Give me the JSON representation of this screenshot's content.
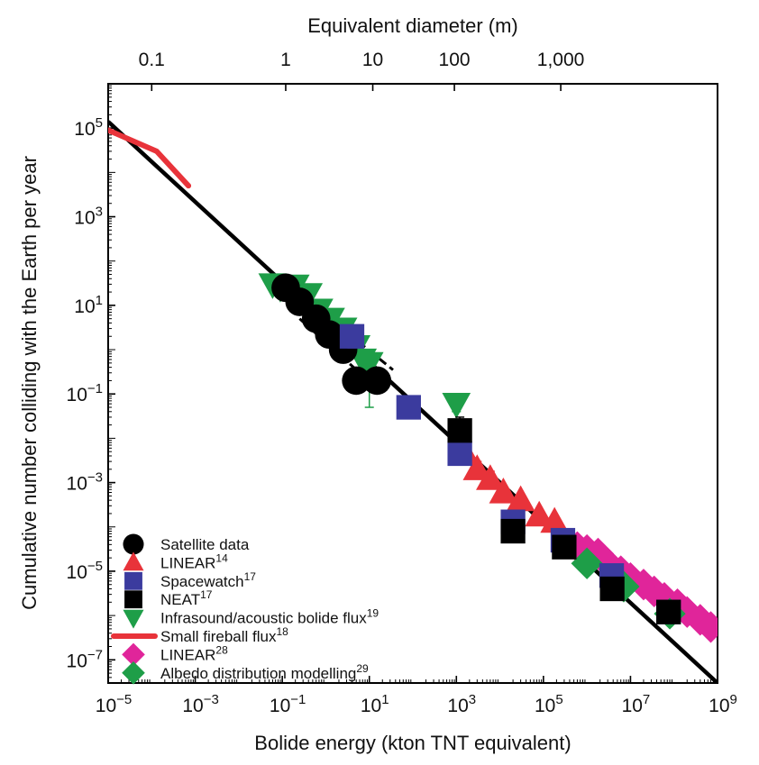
{
  "chart_data": {
    "type": "scatter",
    "xscale": "log",
    "yscale": "log",
    "xlabel": "Bolide energy (kton TNT equivalent)",
    "ylabel": "Cumulative number colliding with the Earth per year",
    "x2label": "Equivalent diameter (m)",
    "xlim": [
      1e-05,
      1000000000.0
    ],
    "ylim": [
      3e-08,
      1000000.0
    ],
    "x_ticks": [
      {
        "value": 1e-05,
        "base": "10",
        "exp": "−5"
      },
      {
        "value": 0.001,
        "base": "10",
        "exp": "−3"
      },
      {
        "value": 0.1,
        "base": "10",
        "exp": "−1"
      },
      {
        "value": 10.0,
        "base": "10",
        "exp": "1"
      },
      {
        "value": 1000.0,
        "base": "10",
        "exp": "3"
      },
      {
        "value": 100000.0,
        "base": "10",
        "exp": "5"
      },
      {
        "value": 10000000.0,
        "base": "10",
        "exp": "7"
      },
      {
        "value": 1000000000.0,
        "base": "10",
        "exp": "9"
      }
    ],
    "y_ticks": [
      {
        "value": 100000.0,
        "base": "10",
        "exp": "5"
      },
      {
        "value": 1000.0,
        "base": "10",
        "exp": "3"
      },
      {
        "value": 10.0,
        "base": "10",
        "exp": "1"
      },
      {
        "value": 0.1,
        "base": "10",
        "exp": "−1"
      },
      {
        "value": 0.001,
        "base": "10",
        "exp": "−3"
      },
      {
        "value": 1e-05,
        "base": "10",
        "exp": "−5"
      },
      {
        "value": 1e-07,
        "base": "10",
        "exp": "−7"
      }
    ],
    "top_ticks": [
      {
        "label": "0.1",
        "energy": 0.0001
      },
      {
        "label": "1",
        "energy": 0.12
      },
      {
        "label": "10",
        "energy": 12
      },
      {
        "label": "100",
        "energy": 900
      },
      {
        "label": "1,000",
        "energy": 250000
      }
    ],
    "fit_lines": [
      {
        "name": "Power-law fit",
        "points": [
          [
            1e-05,
            140000.0
          ],
          [
            1000000000.0,
            3e-08
          ]
        ],
        "dash": "none"
      },
      {
        "name": "Satellite fit upper bound",
        "points": [
          [
            0.6,
            9
          ],
          [
            35,
            0.35
          ]
        ],
        "dash": "10,5"
      },
      {
        "name": "Satellite fit lower bound",
        "points": [
          [
            0.25,
            5
          ],
          [
            6,
            0.3
          ]
        ],
        "dash": "10,5"
      }
    ],
    "series": [
      {
        "name": "Satellite data",
        "sup": "",
        "marker": "circle",
        "color": "#000000",
        "points": [
          [
            0.12,
            25
          ],
          [
            0.25,
            12
          ],
          [
            0.6,
            5
          ],
          [
            1.2,
            2.2
          ],
          [
            2.5,
            1
          ],
          [
            5,
            0.2
          ],
          [
            15,
            0.2
          ]
        ]
      },
      {
        "name": "LINEAR",
        "sup": "14",
        "marker": "triangle-up",
        "color": "#e8333a",
        "points": [
          [
            1600,
            0.0045
          ],
          [
            3000,
            0.002
          ],
          [
            6000,
            0.0012
          ],
          [
            12000,
            0.0006
          ],
          [
            30000,
            0.0004
          ],
          [
            80000,
            0.00018
          ],
          [
            180000,
            0.00013
          ]
        ],
        "errors": [
          [
            1600,
            0.003,
            0.009
          ],
          [
            3000,
            0.0012,
            0.003
          ],
          [
            6000,
            0.0008,
            0.0018
          ]
        ]
      },
      {
        "name": "Spacewatch",
        "sup": "17",
        "marker": "square",
        "color": "#3b3b9e",
        "points": [
          [
            4,
            2
          ],
          [
            80,
            0.05
          ],
          [
            1200,
            0.0045
          ],
          [
            20000,
            0.00013
          ],
          [
            280000,
            5e-05
          ],
          [
            3700000,
            8e-06
          ],
          [
            75000000,
            1.2e-06
          ]
        ],
        "errors": [
          [
            4,
            1.1,
            3.2
          ],
          [
            80,
            0.03,
            0.08
          ]
        ]
      },
      {
        "name": "NEAT",
        "sup": "17",
        "marker": "square",
        "color": "#000000",
        "points": [
          [
            1200,
            0.015
          ],
          [
            20000,
            8e-05
          ],
          [
            300000,
            3.5e-05
          ],
          [
            3800000,
            4e-06
          ],
          [
            75000000,
            1.2e-06
          ]
        ],
        "errors": [
          [
            1200,
            0.01,
            0.03
          ]
        ]
      },
      {
        "name": "Infrasound/acoustic bolide flux",
        "sup": "19",
        "marker": "triangle-down",
        "color": "#1e9e48",
        "points": [
          [
            0.06,
            30
          ],
          [
            0.09,
            25
          ],
          [
            0.2,
            28
          ],
          [
            0.4,
            18
          ],
          [
            0.7,
            8
          ],
          [
            1.3,
            5
          ],
          [
            2.5,
            3
          ],
          [
            3.5,
            2
          ],
          [
            5,
            1.2
          ],
          [
            7,
            0.6
          ],
          [
            10,
            0.5
          ],
          [
            1000,
            0.06
          ]
        ],
        "errors": [
          [
            10,
            0.05,
            0.45
          ],
          [
            1000,
            0.04,
            0.1
          ]
        ]
      },
      {
        "name": "Small fireball flux",
        "sup": "18",
        "marker": "line",
        "color": "#e8333a",
        "points": [
          [
            1e-05,
            90000.0
          ],
          [
            0.00013,
            30000.0
          ],
          [
            0.0007,
            5000
          ]
        ]
      },
      {
        "name": "LINEAR",
        "sup": "28",
        "marker": "diamond",
        "color": "#e0259a",
        "points": [
          [
            600000,
            3.5e-05
          ],
          [
            1000000,
            3e-05
          ],
          [
            1800000,
            2.5e-05
          ],
          [
            3000000,
            1.5e-05
          ],
          [
            6000000,
            1e-05
          ],
          [
            10000000,
            7e-06
          ],
          [
            20000000,
            5e-06
          ],
          [
            35000000,
            3.5e-06
          ],
          [
            60000000,
            2.5e-06
          ],
          [
            120000000,
            1.8e-06
          ],
          [
            200000000,
            1.2e-06
          ],
          [
            400000000,
            8e-07
          ],
          [
            700000000,
            5.5e-07
          ]
        ]
      },
      {
        "name": "Albedo distribution modelling",
        "sup": "29",
        "marker": "diamond",
        "color": "#1e9e48",
        "points": [
          [
            1000000,
            1.5e-05
          ],
          [
            7000000,
            4.5e-06
          ],
          [
            80000000,
            1.1e-06
          ]
        ]
      }
    ],
    "legend_position": "bottom-left"
  }
}
